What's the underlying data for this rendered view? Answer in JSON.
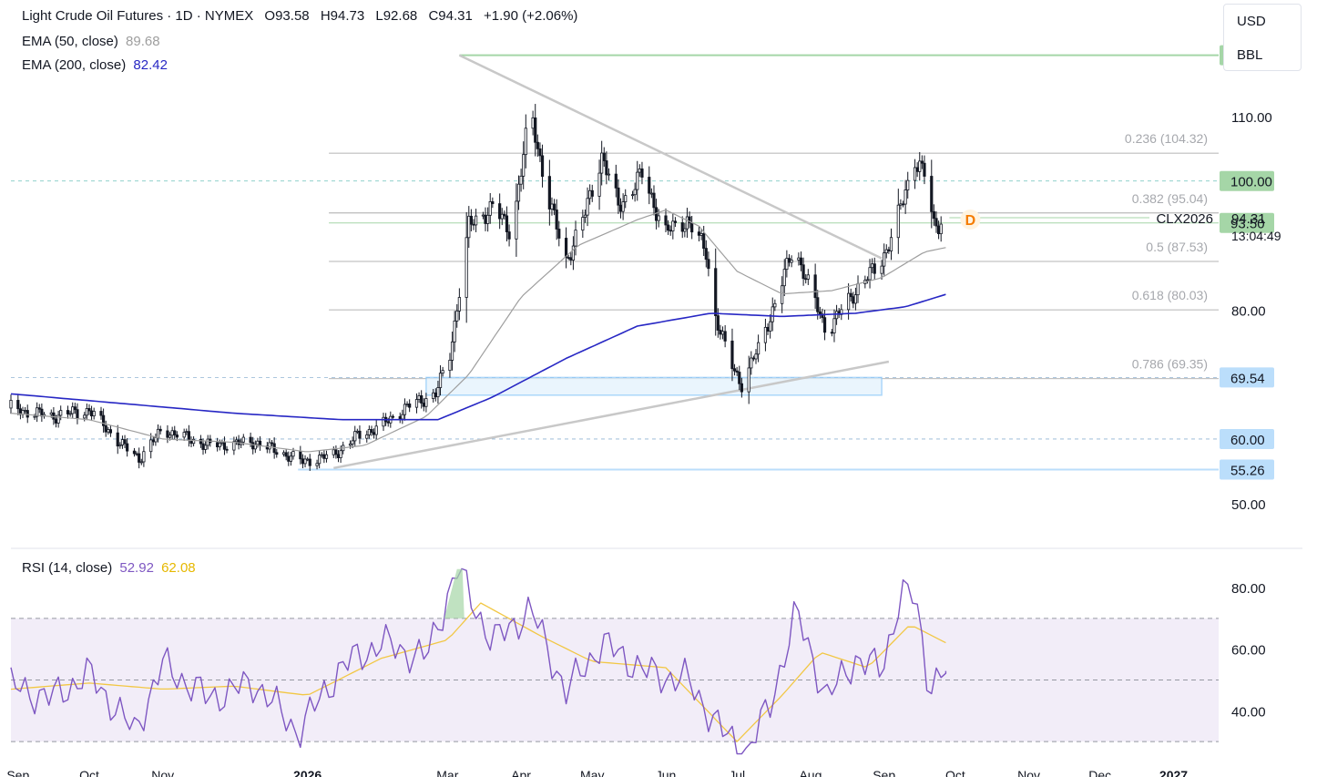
{
  "header": {
    "title": "Light Crude Oil Futures · 1D · NYMEX",
    "ohlc": [
      {
        "label": "O",
        "value": "93.58"
      },
      {
        "label": "H",
        "value": "94.73"
      },
      {
        "label": "L",
        "value": "92.68"
      },
      {
        "label": "C",
        "value": "94.31"
      }
    ],
    "change": "+1.90 (+2.06%)"
  },
  "indicators": {
    "ema50": {
      "label": "EMA (50, close)",
      "value": "89.68",
      "color": "#9e9e9e"
    },
    "ema200": {
      "label": "EMA (200, close)",
      "value": "82.42",
      "color": "#2727c4"
    },
    "rsi": {
      "label": "RSI (14, close)",
      "value": "52.92",
      "ma_value": "62.08",
      "color": "#7e57c2",
      "ma_color": "#f2c744"
    }
  },
  "units": {
    "currency": "USD",
    "unit": "BBL"
  },
  "symbol": {
    "name": "CLX2026",
    "last_price": "94.31",
    "countdown": "13:04:49",
    "marker": "D"
  },
  "colors": {
    "bull": "#089981",
    "bear": "#131722",
    "accent_green": "#a5d6a7",
    "accent_blue": "#bbdefb"
  },
  "chart_data": [
    {
      "type": "candlestick",
      "title": "Light Crude Oil Futures · 1D · NYMEX",
      "ylim": [
        47,
        121
      ],
      "y_ticks": [
        "110.00",
        "80.00",
        "50.00"
      ],
      "x_ticks": [
        "Sep",
        "Oct",
        "Nov",
        "2026",
        "Mar",
        "Apr",
        "May",
        "Jun",
        "Jul",
        "Aug",
        "Sep",
        "Oct",
        "Nov",
        "Dec",
        "2027"
      ],
      "x_tick_dates": [
        "2025-09-01",
        "2025-10-01",
        "2025-11-01",
        "2026-01-01",
        "2026-03-01",
        "2026-04-01",
        "2026-05-01",
        "2026-06-01",
        "2026-07-01",
        "2026-08-01",
        "2026-09-01",
        "2026-10-01",
        "2026-11-01",
        "2026-12-01",
        "2027-01-01"
      ],
      "x_range": [
        "2025-08-29",
        "2027-01-20"
      ],
      "price_path": [
        [
          "2025-08-29",
          64.8
        ],
        [
          "2025-09-15",
          63.5
        ],
        [
          "2025-10-01",
          64.5
        ],
        [
          "2025-10-15",
          59.0
        ],
        [
          "2025-10-22",
          57.0
        ],
        [
          "2025-11-01",
          61.5
        ],
        [
          "2025-11-20",
          59.0
        ],
        [
          "2025-12-10",
          59.5
        ],
        [
          "2025-12-30",
          56.5
        ],
        [
          "2026-01-12",
          57.5
        ],
        [
          "2026-01-22",
          60.5
        ],
        [
          "2026-02-01",
          62.0
        ],
        [
          "2026-02-12",
          65.0
        ],
        [
          "2026-02-24",
          67.0
        ],
        [
          "2026-03-02",
          73.0
        ],
        [
          "2026-03-10",
          93.0
        ],
        [
          "2026-03-20",
          96.0
        ],
        [
          "2026-03-28",
          92.0
        ],
        [
          "2026-04-05",
          111.0
        ],
        [
          "2026-04-12",
          98.0
        ],
        [
          "2026-04-20",
          87.5
        ],
        [
          "2026-04-28",
          95.0
        ],
        [
          "2026-05-05",
          104.0
        ],
        [
          "2026-05-12",
          96.0
        ],
        [
          "2026-05-22",
          101.0
        ],
        [
          "2026-06-01",
          92.0
        ],
        [
          "2026-06-10",
          94.0
        ],
        [
          "2026-06-18",
          89.0
        ],
        [
          "2026-06-22",
          79.0
        ],
        [
          "2026-06-28",
          72.0
        ],
        [
          "2026-07-03",
          68.5
        ],
        [
          "2026-07-10",
          74.0
        ],
        [
          "2026-07-18",
          82.0
        ],
        [
          "2026-07-25",
          90.0
        ],
        [
          "2026-07-31",
          84.0
        ],
        [
          "2026-08-08",
          76.5
        ],
        [
          "2026-08-14",
          80.0
        ],
        [
          "2026-08-22",
          84.0
        ],
        [
          "2026-08-30",
          87.0
        ],
        [
          "2026-09-05",
          92.0
        ],
        [
          "2026-09-14",
          103.5
        ],
        [
          "2026-09-18",
          101.0
        ],
        [
          "2026-09-22",
          93.0
        ],
        [
          "2026-09-27",
          94.31
        ]
      ],
      "ema50": [
        [
          "2025-08-29",
          64.0
        ],
        [
          "2025-10-01",
          63.0
        ],
        [
          "2025-11-01",
          60.0
        ],
        [
          "2025-12-01",
          59.5
        ],
        [
          "2026-01-01",
          58.0
        ],
        [
          "2026-01-25",
          59.0
        ],
        [
          "2026-02-20",
          63.5
        ],
        [
          "2026-03-10",
          70.0
        ],
        [
          "2026-04-01",
          82.0
        ],
        [
          "2026-04-25",
          90.0
        ],
        [
          "2026-05-20",
          94.0
        ],
        [
          "2026-06-01",
          95.5
        ],
        [
          "2026-06-15",
          93.0
        ],
        [
          "2026-07-01",
          86.0
        ],
        [
          "2026-07-20",
          82.5
        ],
        [
          "2026-08-10",
          83.0
        ],
        [
          "2026-08-31",
          85.0
        ],
        [
          "2026-09-18",
          89.0
        ],
        [
          "2026-09-27",
          89.68
        ]
      ],
      "ema200": [
        [
          "2025-08-29",
          67.0
        ],
        [
          "2025-10-15",
          65.5
        ],
        [
          "2025-12-01",
          64.0
        ],
        [
          "2026-01-15",
          63.0
        ],
        [
          "2026-02-25",
          63.0
        ],
        [
          "2026-03-20",
          66.5
        ],
        [
          "2026-04-20",
          72.5
        ],
        [
          "2026-05-20",
          77.5
        ],
        [
          "2026-06-20",
          79.5
        ],
        [
          "2026-07-20",
          79.0
        ],
        [
          "2026-08-20",
          79.5
        ],
        [
          "2026-09-10",
          80.5
        ],
        [
          "2026-09-27",
          82.42
        ]
      ],
      "fibonacci": [
        {
          "label": "0.236 (104.32)",
          "value": 104.32
        },
        {
          "label": "0.382 (95.04)",
          "value": 95.04
        },
        {
          "label": "0.5 (87.53)",
          "value": 87.53
        },
        {
          "label": "0.618 (80.03)",
          "value": 80.03
        },
        {
          "label": "0.786 (69.35)",
          "value": 69.35
        }
      ],
      "levels": [
        {
          "label": "119.50",
          "value": 119.5,
          "style": "green"
        },
        {
          "label": "100.00",
          "value": 100.0,
          "style": "green"
        },
        {
          "label": "93.50",
          "value": 93.5,
          "style": "green"
        },
        {
          "label": "69.54",
          "value": 69.54,
          "style": "blue"
        },
        {
          "label": "60.00",
          "value": 60.0,
          "style": "blue"
        },
        {
          "label": "55.26",
          "value": 55.26,
          "style": "blue"
        }
      ],
      "trendlines": [
        {
          "from": [
            "2026-03-06",
            119.5
          ],
          "to": [
            "2026-08-31",
            88.0
          ]
        },
        {
          "from": [
            "2026-01-12",
            55.5
          ],
          "to": [
            "2026-09-03",
            72.0
          ]
        }
      ],
      "zone": {
        "from_date": "2026-02-20",
        "to_date": "2026-08-31",
        "low": 66.8,
        "high": 69.54
      }
    },
    {
      "type": "line",
      "title": "RSI (14, close)",
      "ylim": [
        25,
        88
      ],
      "y_ticks": [
        "80.00",
        "60.00",
        "40.00"
      ],
      "bands": [
        70,
        50,
        30
      ],
      "rsi": [
        [
          "2025-08-29",
          48
        ],
        [
          "2025-09-15",
          44
        ],
        [
          "2025-10-01",
          52
        ],
        [
          "2025-10-20",
          33
        ],
        [
          "2025-11-01",
          55
        ],
        [
          "2025-11-20",
          44
        ],
        [
          "2025-12-10",
          49
        ],
        [
          "2025-12-28",
          33
        ],
        [
          "2026-01-15",
          54
        ],
        [
          "2026-02-01",
          62
        ],
        [
          "2026-02-20",
          57
        ],
        [
          "2026-03-05",
          86
        ],
        [
          "2026-03-20",
          62
        ],
        [
          "2026-04-05",
          73
        ],
        [
          "2026-04-20",
          46
        ],
        [
          "2026-05-05",
          62
        ],
        [
          "2026-05-25",
          52
        ],
        [
          "2026-06-10",
          50
        ],
        [
          "2026-06-25",
          33
        ],
        [
          "2026-07-05",
          26
        ],
        [
          "2026-07-15",
          42
        ],
        [
          "2026-07-26",
          72
        ],
        [
          "2026-08-08",
          44
        ],
        [
          "2026-08-20",
          57
        ],
        [
          "2026-08-31",
          53
        ],
        [
          "2026-09-08",
          78
        ],
        [
          "2026-09-14",
          77
        ],
        [
          "2026-09-20",
          48
        ],
        [
          "2026-09-27",
          52.92
        ]
      ],
      "rsi_ma": [
        [
          "2025-08-29",
          47
        ],
        [
          "2025-10-01",
          49
        ],
        [
          "2025-11-01",
          47
        ],
        [
          "2025-12-01",
          48
        ],
        [
          "2026-01-01",
          45
        ],
        [
          "2026-02-01",
          57
        ],
        [
          "2026-03-01",
          63
        ],
        [
          "2026-03-15",
          75
        ],
        [
          "2026-04-10",
          64
        ],
        [
          "2026-05-01",
          56
        ],
        [
          "2026-06-01",
          54
        ],
        [
          "2026-07-01",
          30
        ],
        [
          "2026-07-20",
          45
        ],
        [
          "2026-08-05",
          59
        ],
        [
          "2026-08-25",
          54
        ],
        [
          "2026-09-12",
          68
        ],
        [
          "2026-09-27",
          62.08
        ]
      ]
    }
  ]
}
